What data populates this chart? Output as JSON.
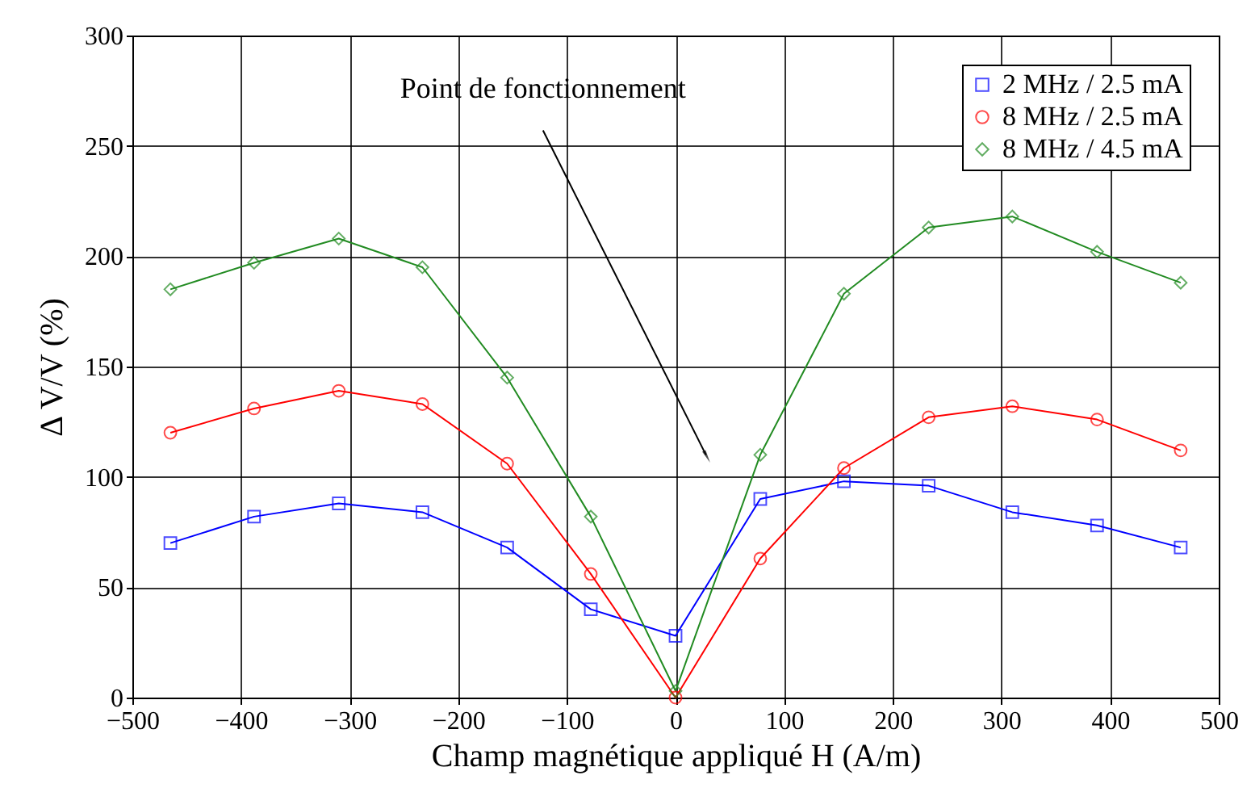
{
  "chart_data": {
    "type": "line",
    "xlabel": "Champ magnétique appliqué H (A/m)",
    "ylabel": "Δ V/V (%)",
    "x": [
      -465,
      -388,
      -310,
      -233,
      -155,
      -78,
      0,
      78,
      155,
      233,
      310,
      388,
      465
    ],
    "series": [
      {
        "name": "2 MHz / 2.5 mA",
        "color": "#0000ff",
        "marker": "square",
        "values": [
          70,
          82,
          88,
          84,
          68,
          40,
          28,
          90,
          98,
          96,
          84,
          78,
          68
        ]
      },
      {
        "name": "8 MHz / 2.5 mA",
        "color": "#ff0000",
        "marker": "circle",
        "values": [
          120,
          131,
          139,
          133,
          106,
          56,
          0,
          63,
          104,
          127,
          132,
          126,
          112
        ]
      },
      {
        "name": "8 MHz / 4.5 mA",
        "color": "#228b22",
        "marker": "diamond",
        "values": [
          185,
          197,
          208,
          195,
          145,
          82,
          3,
          110,
          183,
          213,
          218,
          202,
          188
        ]
      }
    ],
    "xlim": [
      -500,
      500
    ],
    "xticks": [
      -500,
      -400,
      -300,
      -200,
      -100,
      0,
      100,
      200,
      300,
      400,
      500
    ],
    "ylim": [
      0,
      300
    ],
    "yticks": [
      0,
      50,
      100,
      150,
      200,
      250,
      300
    ],
    "grid": true,
    "legend": "top right",
    "line_style": "solid",
    "annotations": [
      {
        "text": "Point de fonctionnement",
        "x": 28,
        "y": 110
      }
    ]
  }
}
